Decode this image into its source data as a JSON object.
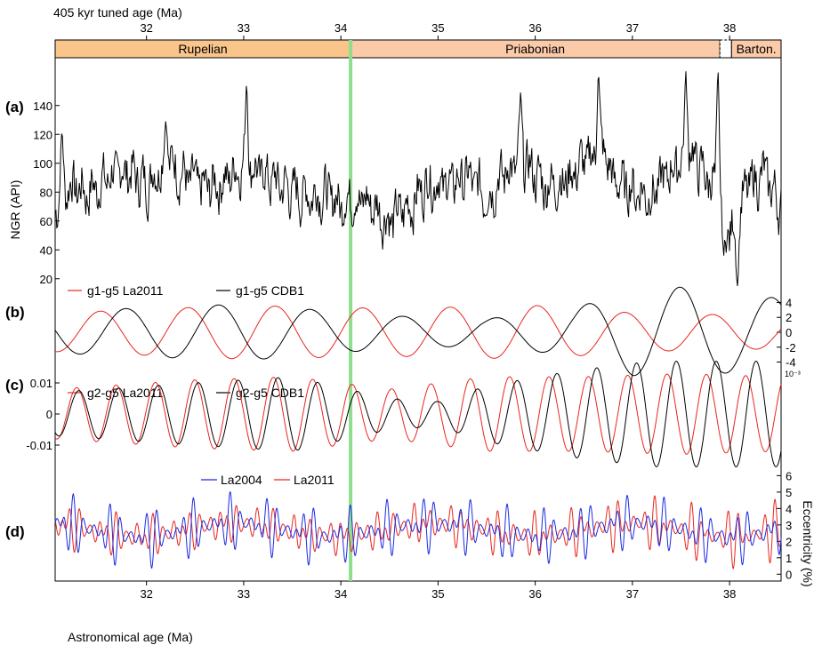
{
  "chart_data": {
    "type": "line",
    "top_axis": {
      "label": "405 kyr tuned age (Ma)",
      "ticks": [
        32,
        33,
        34,
        35,
        36,
        37,
        38
      ],
      "range": [
        31.06,
        38.53
      ]
    },
    "bottom_axis": {
      "label": "Astronomical age (Ma)",
      "ticks": [
        32,
        33,
        34,
        35,
        36,
        37,
        38
      ],
      "range": [
        31.06,
        38.53
      ]
    },
    "boundary_age": 34.1,
    "stages": [
      {
        "name": "Rupelian",
        "from": 31.06,
        "to": 34.1,
        "color": "#f9c58a"
      },
      {
        "name": "Priabonian",
        "from": 34.1,
        "to": 37.9,
        "color": "#fbcaa9"
      },
      {
        "name": "",
        "from": 37.9,
        "to": 38.02,
        "color": "#ffffff"
      },
      {
        "name": "Barton.",
        "from": 38.02,
        "to": 38.53,
        "color": "#fbcaa9"
      }
    ],
    "panels": [
      {
        "id": "a",
        "label": "(a)",
        "ylabel": "NGR (API)",
        "yticks": [
          "20",
          "40",
          "60",
          "80",
          "100",
          "120",
          "140"
        ],
        "ylim": [
          10,
          170
        ],
        "series": [
          {
            "name": "NGR",
            "color": "#000000",
            "knots": [
              [
                31.06,
                70
              ],
              [
                31.2,
                85
              ],
              [
                31.4,
                80
              ],
              [
                31.6,
                90
              ],
              [
                31.8,
                95
              ],
              [
                32.0,
                85
              ],
              [
                32.2,
                105
              ],
              [
                32.4,
                90
              ],
              [
                32.6,
                82
              ],
              [
                32.8,
                88
              ],
              [
                33.0,
                100
              ],
              [
                33.2,
                92
              ],
              [
                33.4,
                84
              ],
              [
                33.6,
                78
              ],
              [
                33.8,
                80
              ],
              [
                34.0,
                72
              ],
              [
                34.1,
                78
              ],
              [
                34.3,
                72
              ],
              [
                34.5,
                60
              ],
              [
                34.7,
                70
              ],
              [
                34.9,
                88
              ],
              [
                35.1,
                85
              ],
              [
                35.3,
                90
              ],
              [
                35.5,
                78
              ],
              [
                35.7,
                95
              ],
              [
                35.9,
                100
              ],
              [
                36.1,
                85
              ],
              [
                36.3,
                88
              ],
              [
                36.5,
                100
              ],
              [
                36.7,
                110
              ],
              [
                36.8,
                88
              ],
              [
                37.0,
                82
              ],
              [
                37.2,
                78
              ],
              [
                37.4,
                95
              ],
              [
                37.6,
                110
              ],
              [
                37.7,
                95
              ],
              [
                37.85,
                85
              ],
              [
                38.0,
                50
              ],
              [
                38.2,
                85
              ],
              [
                38.35,
                92
              ],
              [
                38.53,
                70
              ]
            ],
            "noise": 18,
            "spikes": [
              [
                31.13,
                125
              ],
              [
                32.2,
                132
              ],
              [
                33.03,
                160
              ],
              [
                35.85,
                150
              ],
              [
                36.65,
                168
              ],
              [
                37.55,
                165
              ],
              [
                37.88,
                170
              ],
              [
                37.94,
                35
              ],
              [
                38.08,
                12
              ]
            ]
          }
        ]
      },
      {
        "id": "b",
        "label": "(b)",
        "yticks_right": [
          "4",
          "2",
          "0",
          "-2",
          "-4"
        ],
        "scale_note": "10⁻³",
        "ylim": [
          -6.2,
          6.2
        ],
        "legend": [
          "g1-g5 La2011",
          "g1-g5 CDB1"
        ],
        "series": [
          {
            "name": "g1-g5 La2011",
            "color": "#e8261d",
            "period": 0.9,
            "phase": 31.3,
            "amp_knots": [
              [
                31.06,
                2.6
              ],
              [
                33.0,
                3.6
              ],
              [
                34.5,
                3.2
              ],
              [
                36.0,
                3.6
              ],
              [
                37.0,
                2.6
              ],
              [
                38.53,
                2.2
              ]
            ]
          },
          {
            "name": "g1-g5 CDB1",
            "color": "#000000",
            "period": 0.95,
            "phase": 31.55,
            "amp_knots": [
              [
                31.06,
                2.8
              ],
              [
                33.0,
                3.8
              ],
              [
                34.5,
                2.2
              ],
              [
                35.5,
                1.8
              ],
              [
                36.4,
                3.2
              ],
              [
                37.0,
                5.8
              ],
              [
                37.6,
                6.1
              ],
              [
                38.53,
                4.5
              ]
            ]
          }
        ]
      },
      {
        "id": "c",
        "label": "(c)",
        "yticks": [
          "0.01",
          "0",
          "-0.01"
        ],
        "ylim": [
          -0.02,
          0.02
        ],
        "legend": [
          "g2-g5 La2011",
          "g2-g5 CDB1"
        ],
        "series": [
          {
            "name": "g2-g5 La2011",
            "color": "#e8261d",
            "period": 0.405,
            "phase": 31.18,
            "amp_knots": [
              [
                31.06,
                0.008
              ],
              [
                32.5,
                0.011
              ],
              [
                33.5,
                0.012
              ],
              [
                34.5,
                0.008
              ],
              [
                35.5,
                0.012
              ],
              [
                36.5,
                0.012
              ],
              [
                37.5,
                0.013
              ],
              [
                38.53,
                0.012
              ]
            ]
          },
          {
            "name": "g2-g5 CDB1",
            "color": "#000000",
            "period": 0.41,
            "phase": 31.2,
            "amp_knots": [
              [
                31.06,
                0.007
              ],
              [
                32.5,
                0.01
              ],
              [
                33.5,
                0.012
              ],
              [
                34.5,
                0.005
              ],
              [
                35.0,
                0.004
              ],
              [
                35.5,
                0.009
              ],
              [
                36.4,
                0.014
              ],
              [
                37.2,
                0.017
              ],
              [
                38.53,
                0.017
              ]
            ]
          }
        ]
      },
      {
        "id": "d",
        "label": "(d)",
        "ylabel_right": "Eccentricity (%)",
        "yticks_right": [
          "6",
          "5",
          "4",
          "3",
          "2",
          "1",
          "0"
        ],
        "ylim": [
          -0.2,
          6.4
        ],
        "legend": [
          "La2004",
          "La2011"
        ],
        "series": [
          {
            "name": "La2004",
            "color": "#1a2be0",
            "p1": 0.095,
            "p2": 0.124,
            "p405": 0.405,
            "shift": 0.0
          },
          {
            "name": "La2011",
            "color": "#e8261d",
            "p1": 0.0952,
            "p2": 0.1238,
            "p405": 0.405,
            "shift": 0.004
          }
        ]
      }
    ]
  }
}
